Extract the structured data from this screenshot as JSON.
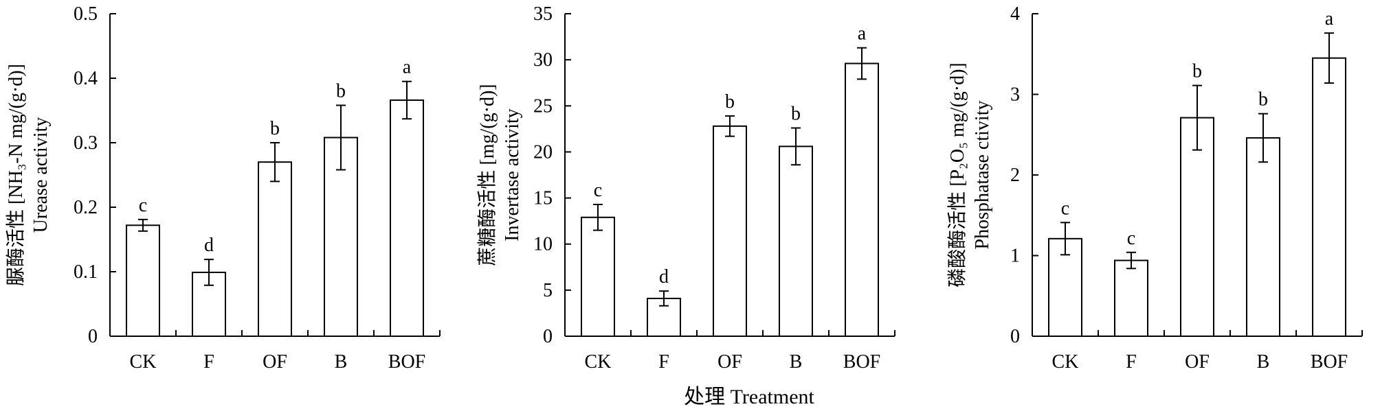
{
  "x_common_label": "处理 Treatment",
  "chart_data": [
    {
      "type": "bar",
      "categories": [
        "CK",
        "F",
        "OF",
        "B",
        "BOF"
      ],
      "values": [
        0.172,
        0.099,
        0.27,
        0.308,
        0.366
      ],
      "errors": [
        0.009,
        0.02,
        0.03,
        0.05,
        0.029
      ],
      "letters": [
        "c",
        "d",
        "b",
        "b",
        "a"
      ],
      "ylabel_cn": "脲酶活性",
      "ylabel_unit": "[NH₃-N mg/(g·d)]",
      "ylabel_en": "Urease activity",
      "ylim": [
        0,
        0.5
      ],
      "yticks": [
        0,
        0.1,
        0.2,
        0.3,
        0.4,
        0.5
      ],
      "ytick_labels": [
        "0",
        "0.1",
        "0.2",
        "0.3",
        "0.4",
        "0.5"
      ]
    },
    {
      "type": "bar",
      "categories": [
        "CK",
        "F",
        "OF",
        "B",
        "BOF"
      ],
      "values": [
        12.9,
        4.1,
        22.8,
        20.6,
        29.6
      ],
      "errors": [
        1.4,
        0.8,
        1.1,
        2.0,
        1.7
      ],
      "letters": [
        "c",
        "d",
        "b",
        "b",
        "a"
      ],
      "ylabel_cn": "蔗糖酶活性",
      "ylabel_unit": "[mg/(g·d)]",
      "ylabel_en": "Invertase activity",
      "ylim": [
        0,
        35
      ],
      "yticks": [
        0,
        5,
        10,
        15,
        20,
        25,
        30,
        35
      ],
      "ytick_labels": [
        "0",
        "5",
        "10",
        "15",
        "20",
        "25",
        "30",
        "35"
      ]
    },
    {
      "type": "bar",
      "categories": [
        "CK",
        "F",
        "OF",
        "B",
        "BOF"
      ],
      "values": [
        1.21,
        0.94,
        2.71,
        2.46,
        3.45
      ],
      "errors": [
        0.2,
        0.1,
        0.4,
        0.3,
        0.31
      ],
      "letters": [
        "c",
        "c",
        "b",
        "b",
        "a"
      ],
      "ylabel_cn": "磷酸酶活性",
      "ylabel_unit": "[P₂O₅ mg/(g·d)]",
      "ylabel_en": "Phosphatase ctivity",
      "ylim": [
        0,
        4
      ],
      "yticks": [
        0,
        1,
        2,
        3,
        4
      ],
      "ytick_labels": [
        "0",
        "1",
        "2",
        "3",
        "4"
      ]
    }
  ]
}
